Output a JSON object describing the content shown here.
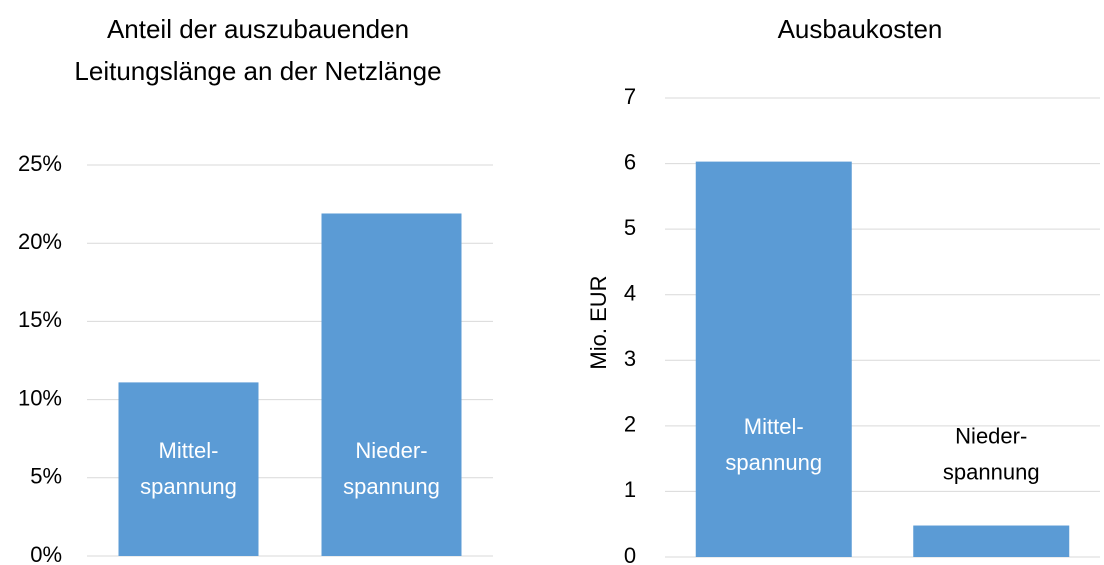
{
  "chart_data": [
    {
      "type": "bar",
      "title": "Anteil der auszubauenden Leitungslänge an der Netzlänge",
      "categories": [
        [
          "Mittel-",
          "spannung"
        ],
        [
          "Nieder-",
          "spannung"
        ]
      ],
      "values": [
        11.1,
        21.9
      ],
      "color": "#5b9bd5",
      "ylim": [
        0,
        25
      ],
      "yticks": [
        {
          "value": 0,
          "label": "0%"
        },
        {
          "value": 5,
          "label": "5%"
        },
        {
          "value": 10,
          "label": "10%"
        },
        {
          "value": 15,
          "label": "15%"
        },
        {
          "value": 20,
          "label": "20%"
        },
        {
          "value": 25,
          "label": "25%"
        }
      ],
      "grid": true
    },
    {
      "type": "bar",
      "title": "Ausbaukosten",
      "ylabel": "Mio. EUR",
      "categories": [
        [
          "Mittel-",
          "spannung"
        ],
        [
          "Nieder-",
          "spannung"
        ]
      ],
      "values": [
        6.03,
        0.48
      ],
      "color": "#5b9bd5",
      "ylim": [
        0,
        7
      ],
      "yticks": [
        0,
        1,
        2,
        3,
        4,
        5,
        6,
        7
      ],
      "grid": true
    }
  ]
}
